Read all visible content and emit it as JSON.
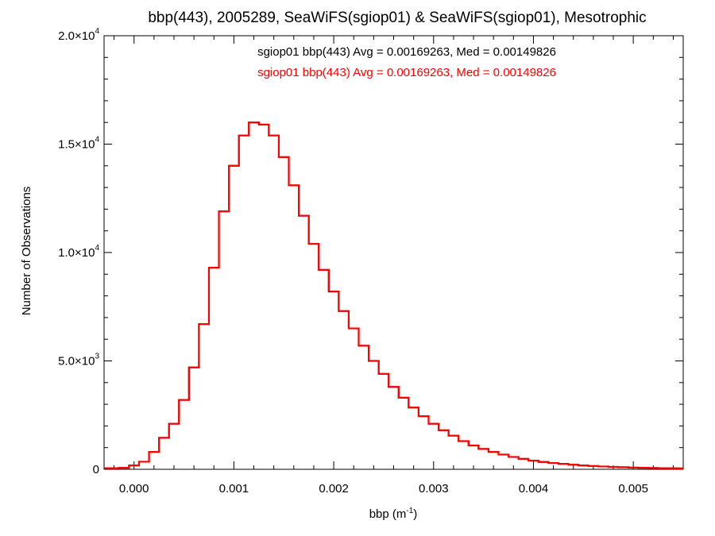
{
  "chart_data": {
    "type": "line",
    "title": "bbp(443), 2005289, SeaWiFS(sgiop01) & SeaWiFS(sgiop01), Mesotrophic",
    "xlabel": "bbp (m",
    "xlabel_sup": "-1",
    "xlabel_suffix": ")",
    "ylabel": "Number of Observations",
    "xlim": [
      -0.0003,
      0.0055
    ],
    "ylim": [
      0,
      20000
    ],
    "x_ticks": [
      0.0,
      0.001,
      0.002,
      0.003,
      0.004,
      0.005
    ],
    "x_tick_labels": [
      "0.000",
      "0.001",
      "0.002",
      "0.003",
      "0.004",
      "0.005"
    ],
    "y_ticks": [
      0,
      5000,
      10000,
      15000,
      20000
    ],
    "y_tick_labels": [
      {
        "mantissa": "0",
        "exp": ""
      },
      {
        "mantissa": "5.0×10",
        "exp": "3"
      },
      {
        "mantissa": "1.0×10",
        "exp": "4"
      },
      {
        "mantissa": "1.5×10",
        "exp": "4"
      },
      {
        "mantissa": "2.0×10",
        "exp": "4"
      }
    ],
    "grid": false,
    "legend_position": "top-center",
    "series": [
      {
        "name": "sgiop01 bbp(443) Avg = 0.00169263, Med = 0.00149826",
        "color": "#000000",
        "step": true,
        "points": [
          [
            -0.0003,
            50
          ],
          [
            -0.0002,
            50
          ],
          [
            -0.0001,
            70
          ],
          [
            0.0,
            180
          ],
          [
            0.0001,
            350
          ],
          [
            0.0002,
            800
          ],
          [
            0.0003,
            1450
          ],
          [
            0.0004,
            2100
          ],
          [
            0.0005,
            3200
          ],
          [
            0.0006,
            4700
          ],
          [
            0.0007,
            6700
          ],
          [
            0.0008,
            9300
          ],
          [
            0.0009,
            11900
          ],
          [
            0.001,
            14000
          ],
          [
            0.0011,
            15400
          ],
          [
            0.0012,
            16000
          ],
          [
            0.0013,
            15900
          ],
          [
            0.0014,
            15400
          ],
          [
            0.0015,
            14400
          ],
          [
            0.0016,
            13100
          ],
          [
            0.0017,
            11700
          ],
          [
            0.0018,
            10400
          ],
          [
            0.0019,
            9200
          ],
          [
            0.002,
            8200
          ],
          [
            0.0021,
            7300
          ],
          [
            0.0022,
            6500
          ],
          [
            0.0023,
            5700
          ],
          [
            0.0024,
            5000
          ],
          [
            0.0025,
            4400
          ],
          [
            0.0026,
            3800
          ],
          [
            0.0027,
            3300
          ],
          [
            0.0028,
            2850
          ],
          [
            0.0029,
            2450
          ],
          [
            0.003,
            2100
          ],
          [
            0.0031,
            1800
          ],
          [
            0.0032,
            1550
          ],
          [
            0.0033,
            1300
          ],
          [
            0.0034,
            1100
          ],
          [
            0.0035,
            940
          ],
          [
            0.0036,
            800
          ],
          [
            0.0037,
            680
          ],
          [
            0.0038,
            570
          ],
          [
            0.0039,
            480
          ],
          [
            0.004,
            400
          ],
          [
            0.0041,
            340
          ],
          [
            0.0042,
            290
          ],
          [
            0.0043,
            250
          ],
          [
            0.0044,
            210
          ],
          [
            0.0045,
            180
          ],
          [
            0.0046,
            150
          ],
          [
            0.0047,
            130
          ],
          [
            0.0048,
            110
          ],
          [
            0.0049,
            95
          ],
          [
            0.005,
            80
          ],
          [
            0.0051,
            70
          ],
          [
            0.0052,
            60
          ],
          [
            0.0053,
            50
          ],
          [
            0.0054,
            45
          ],
          [
            0.0055,
            40
          ]
        ]
      },
      {
        "name": "sgiop01 bbp(443) Avg = 0.00169263, Med = 0.00149826",
        "color": "#ff0000",
        "step": true,
        "points": [
          [
            -0.0003,
            50
          ],
          [
            -0.0002,
            50
          ],
          [
            -0.0001,
            70
          ],
          [
            0.0,
            180
          ],
          [
            0.0001,
            350
          ],
          [
            0.0002,
            800
          ],
          [
            0.0003,
            1450
          ],
          [
            0.0004,
            2100
          ],
          [
            0.0005,
            3200
          ],
          [
            0.0006,
            4700
          ],
          [
            0.0007,
            6700
          ],
          [
            0.0008,
            9300
          ],
          [
            0.0009,
            11900
          ],
          [
            0.001,
            14000
          ],
          [
            0.0011,
            15400
          ],
          [
            0.0012,
            16000
          ],
          [
            0.0013,
            15900
          ],
          [
            0.0014,
            15400
          ],
          [
            0.0015,
            14400
          ],
          [
            0.0016,
            13100
          ],
          [
            0.0017,
            11700
          ],
          [
            0.0018,
            10400
          ],
          [
            0.0019,
            9200
          ],
          [
            0.002,
            8200
          ],
          [
            0.0021,
            7300
          ],
          [
            0.0022,
            6500
          ],
          [
            0.0023,
            5700
          ],
          [
            0.0024,
            5000
          ],
          [
            0.0025,
            4400
          ],
          [
            0.0026,
            3800
          ],
          [
            0.0027,
            3300
          ],
          [
            0.0028,
            2850
          ],
          [
            0.0029,
            2450
          ],
          [
            0.003,
            2100
          ],
          [
            0.0031,
            1800
          ],
          [
            0.0032,
            1550
          ],
          [
            0.0033,
            1300
          ],
          [
            0.0034,
            1100
          ],
          [
            0.0035,
            940
          ],
          [
            0.0036,
            800
          ],
          [
            0.0037,
            680
          ],
          [
            0.0038,
            570
          ],
          [
            0.0039,
            480
          ],
          [
            0.004,
            400
          ],
          [
            0.0041,
            340
          ],
          [
            0.0042,
            290
          ],
          [
            0.0043,
            250
          ],
          [
            0.0044,
            210
          ],
          [
            0.0045,
            180
          ],
          [
            0.0046,
            150
          ],
          [
            0.0047,
            130
          ],
          [
            0.0048,
            110
          ],
          [
            0.0049,
            95
          ],
          [
            0.005,
            80
          ],
          [
            0.0051,
            70
          ],
          [
            0.0052,
            60
          ],
          [
            0.0053,
            50
          ],
          [
            0.0054,
            45
          ],
          [
            0.0055,
            40
          ]
        ]
      }
    ]
  }
}
